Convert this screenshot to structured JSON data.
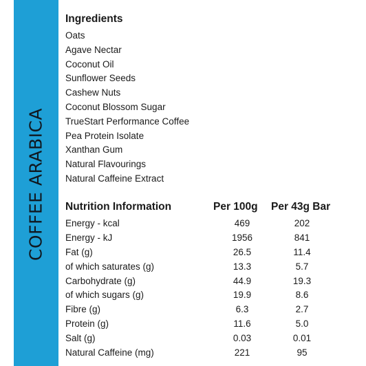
{
  "side_title": "COFFEE ARABICA",
  "ingredients": {
    "heading": "Ingredients",
    "items": [
      "Oats",
      "Agave Nectar",
      "Coconut Oil",
      "Sunflower Seeds",
      "Cashew Nuts",
      "Coconut Blossom Sugar",
      "TrueStart Performance Coffee",
      "Pea Protein Isolate",
      "Xanthan Gum",
      "Natural Flavourings",
      "Natural Caffeine Extract"
    ]
  },
  "nutrition": {
    "heading": "Nutrition Information",
    "col_per_100g": "Per 100g",
    "col_per_bar": "Per 43g Bar",
    "rows": [
      {
        "label": "Energy - kcal",
        "per_100g": "469",
        "per_bar": "202"
      },
      {
        "label": "Energy - kJ",
        "per_100g": "1956",
        "per_bar": "841"
      },
      {
        "label": "Fat (g)",
        "per_100g": "26.5",
        "per_bar": "11.4"
      },
      {
        "label": "of which saturates (g)",
        "per_100g": "13.3",
        "per_bar": "5.7"
      },
      {
        "label": "Carbohydrate (g)",
        "per_100g": "44.9",
        "per_bar": "19.3"
      },
      {
        "label": "of which sugars (g)",
        "per_100g": "19.9",
        "per_bar": "8.6"
      },
      {
        "label": "Fibre (g)",
        "per_100g": "6.3",
        "per_bar": "2.7"
      },
      {
        "label": "Protein (g)",
        "per_100g": "11.6",
        "per_bar": "5.0"
      },
      {
        "label": "Salt (g)",
        "per_100g": "0.03",
        "per_bar": "0.01"
      },
      {
        "label": "Natural Caffeine (mg)",
        "per_100g": "221",
        "per_bar": "95"
      }
    ]
  },
  "colors": {
    "band": "#1e9fd6",
    "text": "#1a1a1a"
  }
}
